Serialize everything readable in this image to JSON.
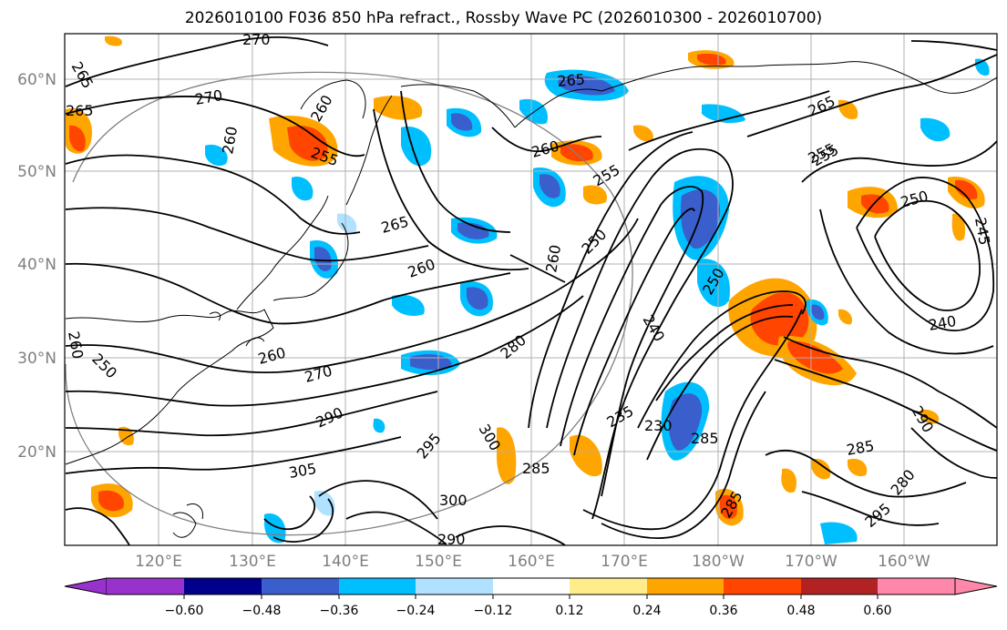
{
  "title": "2026010100 F036 850 hPa refract., Rossby Wave PC (2026010300 - 2026010700)",
  "map": {
    "lat_labels": [
      "20°N",
      "30°N",
      "40°N",
      "50°N",
      "60°N"
    ],
    "lon_labels": [
      "120°E",
      "130°E",
      "140°E",
      "150°E",
      "160°E",
      "170°E",
      "180°W",
      "170°W",
      "160°W"
    ],
    "contour_labels": [
      "270",
      "265",
      "265",
      "270",
      "260",
      "255",
      "260",
      "265",
      "260",
      "255",
      "265",
      "260",
      "255",
      "265",
      "250",
      "245",
      "240",
      "260",
      "250",
      "250",
      "240",
      "255",
      "260",
      "250",
      "270",
      "260",
      "290",
      "280",
      "235",
      "230",
      "285",
      "300",
      "305",
      "295",
      "285",
      "300",
      "285",
      "290",
      "295",
      "280",
      "290",
      "285"
    ],
    "land_color": "#000000",
    "grid_color": "#b0b0b0"
  },
  "colorbar": {
    "ticks": [
      "−0.60",
      "−0.48",
      "−0.36",
      "−0.24",
      "−0.12",
      "0.12",
      "0.24",
      "0.36",
      "0.48",
      "0.60"
    ],
    "colors": [
      "#9932cc",
      "#00008b",
      "#3a5fcd",
      "#00bfff",
      "#b0e2ff",
      "#ffffff",
      "#ffec8b",
      "#ffa500",
      "#ff4500",
      "#b22222",
      "#ff88aa"
    ]
  }
}
